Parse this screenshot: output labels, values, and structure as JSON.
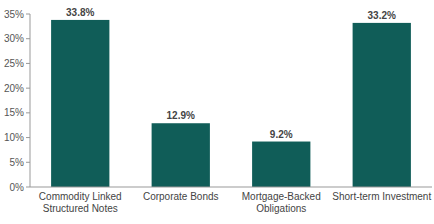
{
  "chart_data": {
    "type": "bar",
    "categories": [
      "Commodity Linked Structured Notes",
      "Corporate Bonds",
      "Mortgage-Backed Obligations",
      "Short-term Investment"
    ],
    "values": [
      33.8,
      12.9,
      9.2,
      33.2
    ],
    "value_labels": [
      "33.8%",
      "12.9%",
      "9.2%",
      "33.2%"
    ],
    "color": "#105d58",
    "ylim": [
      0,
      35
    ],
    "yticks": [
      {
        "value": 0,
        "label": "0%"
      },
      {
        "value": 5,
        "label": "5%"
      },
      {
        "value": 10,
        "label": "10%"
      },
      {
        "value": 15,
        "label": "15%"
      },
      {
        "value": 20,
        "label": "20%"
      },
      {
        "value": 25,
        "label": "25%"
      },
      {
        "value": 30,
        "label": "30%"
      },
      {
        "value": 35,
        "label": "35%"
      }
    ],
    "grid": false,
    "data_labels": true
  }
}
